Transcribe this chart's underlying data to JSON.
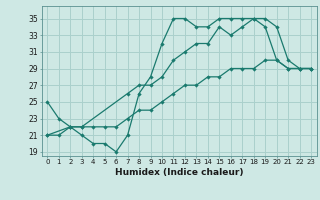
{
  "xlabel": "Humidex (Indice chaleur)",
  "bg_color": "#cee8e4",
  "line_color": "#1a7a6e",
  "grid_color": "#aad0cc",
  "xlim": [
    -0.5,
    23.5
  ],
  "ylim": [
    18.5,
    36.5
  ],
  "xticks": [
    0,
    1,
    2,
    3,
    4,
    5,
    6,
    7,
    8,
    9,
    10,
    11,
    12,
    13,
    14,
    15,
    16,
    17,
    18,
    19,
    20,
    21,
    22,
    23
  ],
  "yticks": [
    19,
    21,
    23,
    25,
    27,
    29,
    31,
    33,
    35
  ],
  "line1_x": [
    0,
    1,
    2,
    3,
    4,
    5,
    6,
    7,
    8,
    9,
    10,
    11,
    12,
    13,
    14,
    15,
    16,
    17,
    18,
    19,
    20,
    21,
    22,
    23
  ],
  "line1_y": [
    25,
    23,
    22,
    21,
    20,
    20,
    19,
    21,
    26,
    28,
    32,
    35,
    35,
    34,
    34,
    35,
    35,
    35,
    35,
    34,
    30,
    29,
    29,
    29
  ],
  "line2_x": [
    0,
    2,
    3,
    7,
    8,
    9,
    10,
    11,
    12,
    13,
    14,
    15,
    16,
    17,
    18,
    19,
    20,
    21,
    22,
    23
  ],
  "line2_y": [
    21,
    22,
    22,
    26,
    27,
    27,
    28,
    30,
    31,
    32,
    32,
    34,
    33,
    34,
    35,
    35,
    34,
    30,
    29,
    29
  ],
  "line3_x": [
    0,
    1,
    2,
    3,
    4,
    5,
    6,
    7,
    8,
    9,
    10,
    11,
    12,
    13,
    14,
    15,
    16,
    17,
    18,
    19,
    20,
    21,
    22,
    23
  ],
  "line3_y": [
    21,
    21,
    22,
    22,
    22,
    22,
    22,
    23,
    24,
    24,
    25,
    26,
    27,
    27,
    28,
    28,
    29,
    29,
    29,
    30,
    30,
    29,
    29,
    29
  ]
}
